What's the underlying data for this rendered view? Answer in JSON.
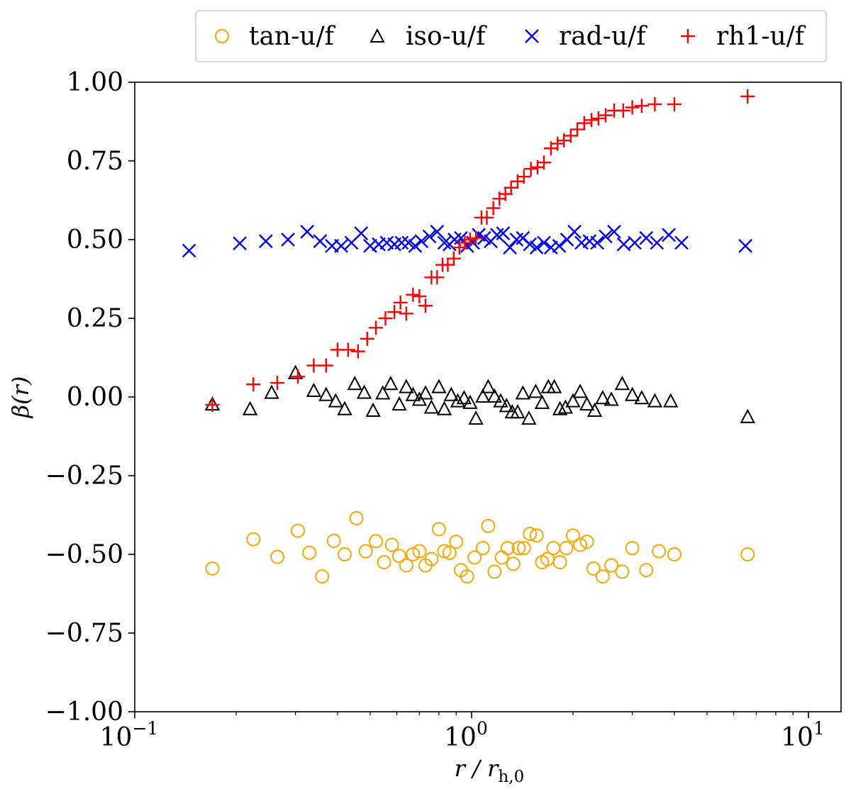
{
  "chart_data": {
    "type": "scatter",
    "xscale": "log",
    "xlim": [
      0.1,
      12.5
    ],
    "ylim": [
      -1.0,
      1.0
    ],
    "grid": false,
    "legend_placement": "top-right outside",
    "xlabel_parts": {
      "main": "r / r",
      "sub": "h,0"
    },
    "ylabel": "β(r)",
    "xticks": [
      {
        "value": 0.1,
        "base": "10",
        "exp": "−1"
      },
      {
        "value": 1,
        "base": "10",
        "exp": "0"
      },
      {
        "value": 10,
        "base": "10",
        "exp": "1"
      }
    ],
    "yticks": [
      {
        "value": 1.0,
        "label": "1.00"
      },
      {
        "value": 0.75,
        "label": "0.75"
      },
      {
        "value": 0.5,
        "label": "0.50"
      },
      {
        "value": 0.25,
        "label": "0.25"
      },
      {
        "value": 0.0,
        "label": "0.00"
      },
      {
        "value": -0.25,
        "label": "−0.25"
      },
      {
        "value": -0.5,
        "label": "−0.50"
      },
      {
        "value": -0.75,
        "label": "−0.75"
      },
      {
        "value": -1.0,
        "label": "−1.00"
      }
    ],
    "series": [
      {
        "name": "tan-u/f",
        "marker": "circle",
        "color": "#FFA500",
        "x": [
          0.17,
          0.225,
          0.265,
          0.305,
          0.33,
          0.36,
          0.39,
          0.42,
          0.455,
          0.485,
          0.52,
          0.55,
          0.58,
          0.61,
          0.64,
          0.67,
          0.7,
          0.73,
          0.76,
          0.8,
          0.83,
          0.86,
          0.9,
          0.93,
          0.97,
          1.02,
          1.08,
          1.12,
          1.17,
          1.23,
          1.28,
          1.33,
          1.38,
          1.43,
          1.49,
          1.56,
          1.62,
          1.68,
          1.75,
          1.83,
          1.91,
          2.0,
          2.1,
          2.2,
          2.3,
          2.45,
          2.6,
          2.8,
          3.0,
          3.3,
          3.6,
          4.0,
          6.6
        ],
        "y": [
          -0.545,
          -0.452,
          -0.508,
          -0.425,
          -0.495,
          -0.57,
          -0.457,
          -0.5,
          -0.385,
          -0.49,
          -0.458,
          -0.525,
          -0.47,
          -0.505,
          -0.535,
          -0.5,
          -0.49,
          -0.535,
          -0.515,
          -0.42,
          -0.49,
          -0.495,
          -0.46,
          -0.55,
          -0.57,
          -0.51,
          -0.48,
          -0.41,
          -0.555,
          -0.51,
          -0.48,
          -0.53,
          -0.48,
          -0.48,
          -0.435,
          -0.44,
          -0.525,
          -0.515,
          -0.48,
          -0.525,
          -0.48,
          -0.44,
          -0.47,
          -0.46,
          -0.545,
          -0.57,
          -0.535,
          -0.555,
          -0.48,
          -0.55,
          -0.49,
          -0.5,
          -0.5
        ]
      },
      {
        "name": "iso-u/f",
        "marker": "triangle",
        "color": "#000000",
        "x": [
          0.17,
          0.22,
          0.255,
          0.3,
          0.34,
          0.37,
          0.395,
          0.42,
          0.45,
          0.48,
          0.51,
          0.545,
          0.575,
          0.61,
          0.64,
          0.67,
          0.7,
          0.73,
          0.76,
          0.8,
          0.83,
          0.87,
          0.91,
          0.95,
          0.99,
          1.03,
          1.08,
          1.12,
          1.17,
          1.22,
          1.27,
          1.32,
          1.37,
          1.42,
          1.48,
          1.55,
          1.62,
          1.69,
          1.76,
          1.83,
          1.9,
          2.0,
          2.1,
          2.2,
          2.32,
          2.45,
          2.6,
          2.8,
          3.0,
          3.2,
          3.5,
          3.9,
          6.6
        ],
        "y": [
          -0.025,
          -0.04,
          0.012,
          0.075,
          0.018,
          0.005,
          -0.015,
          -0.04,
          0.04,
          0.012,
          -0.045,
          0.01,
          0.04,
          -0.025,
          0.03,
          0.005,
          -0.01,
          0.01,
          -0.035,
          0.03,
          -0.04,
          0.005,
          -0.015,
          -0.005,
          -0.02,
          -0.07,
          0.0,
          0.03,
          0.0,
          -0.015,
          -0.03,
          -0.05,
          -0.05,
          0.01,
          -0.07,
          0.015,
          -0.02,
          0.03,
          0.03,
          -0.04,
          -0.035,
          -0.015,
          0.015,
          -0.025,
          -0.045,
          -0.005,
          -0.01,
          0.04,
          0.005,
          -0.005,
          -0.015,
          -0.015,
          -0.065
        ]
      },
      {
        "name": "rad-u/f",
        "marker": "x",
        "color": "#0000FF",
        "x": [
          0.145,
          0.205,
          0.245,
          0.285,
          0.325,
          0.355,
          0.385,
          0.41,
          0.44,
          0.47,
          0.5,
          0.53,
          0.56,
          0.59,
          0.62,
          0.65,
          0.68,
          0.71,
          0.75,
          0.79,
          0.83,
          0.86,
          0.89,
          0.93,
          0.97,
          1.01,
          1.05,
          1.09,
          1.14,
          1.19,
          1.24,
          1.3,
          1.36,
          1.42,
          1.49,
          1.56,
          1.64,
          1.72,
          1.82,
          1.92,
          2.02,
          2.12,
          2.24,
          2.36,
          2.5,
          2.65,
          2.83,
          3.05,
          3.3,
          3.55,
          3.85,
          4.2,
          6.5
        ],
        "y": [
          0.465,
          0.488,
          0.495,
          0.5,
          0.525,
          0.495,
          0.48,
          0.48,
          0.49,
          0.52,
          0.48,
          0.485,
          0.49,
          0.485,
          0.49,
          0.49,
          0.48,
          0.495,
          0.51,
          0.525,
          0.49,
          0.485,
          0.5,
          0.505,
          0.48,
          0.49,
          0.515,
          0.505,
          0.495,
          0.515,
          0.52,
          0.475,
          0.5,
          0.505,
          0.485,
          0.475,
          0.49,
          0.475,
          0.48,
          0.5,
          0.525,
          0.49,
          0.495,
          0.49,
          0.51,
          0.525,
          0.485,
          0.49,
          0.505,
          0.49,
          0.515,
          0.49,
          0.48
        ]
      },
      {
        "name": "rh1-u/f",
        "marker": "plus",
        "color": "#FF0000",
        "x": [
          0.17,
          0.225,
          0.265,
          0.305,
          0.34,
          0.37,
          0.4,
          0.43,
          0.46,
          0.49,
          0.52,
          0.555,
          0.59,
          0.615,
          0.64,
          0.67,
          0.7,
          0.73,
          0.76,
          0.79,
          0.82,
          0.85,
          0.885,
          0.92,
          0.955,
          0.99,
          1.03,
          1.07,
          1.11,
          1.16,
          1.21,
          1.26,
          1.31,
          1.37,
          1.43,
          1.5,
          1.57,
          1.64,
          1.72,
          1.8,
          1.88,
          1.97,
          2.06,
          2.16,
          2.27,
          2.38,
          2.5,
          2.65,
          2.82,
          3.0,
          3.2,
          3.5,
          4.0,
          6.6
        ],
        "y": [
          -0.025,
          0.04,
          0.045,
          0.065,
          0.1,
          0.1,
          0.15,
          0.15,
          0.145,
          0.185,
          0.22,
          0.25,
          0.27,
          0.3,
          0.265,
          0.325,
          0.32,
          0.29,
          0.38,
          0.38,
          0.42,
          0.42,
          0.44,
          0.475,
          0.49,
          0.5,
          0.505,
          0.57,
          0.57,
          0.6,
          0.63,
          0.645,
          0.665,
          0.685,
          0.7,
          0.725,
          0.73,
          0.745,
          0.79,
          0.805,
          0.815,
          0.83,
          0.85,
          0.87,
          0.88,
          0.885,
          0.895,
          0.91,
          0.91,
          0.92,
          0.925,
          0.93,
          0.93,
          0.955
        ]
      }
    ]
  }
}
